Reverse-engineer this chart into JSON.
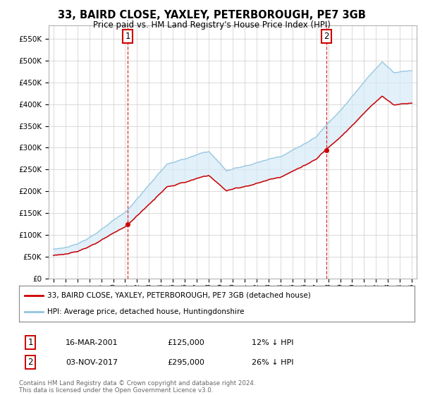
{
  "title": "33, BAIRD CLOSE, YAXLEY, PETERBOROUGH, PE7 3GB",
  "subtitle": "Price paid vs. HM Land Registry's House Price Index (HPI)",
  "ylim": [
    0,
    580000
  ],
  "yticks": [
    0,
    50000,
    100000,
    150000,
    200000,
    250000,
    300000,
    350000,
    400000,
    450000,
    500000,
    550000
  ],
  "sale1_date_num": 2001.21,
  "sale1_price": 125000,
  "sale1_label": "1",
  "sale2_date_num": 2017.84,
  "sale2_price": 295000,
  "sale2_label": "2",
  "hpi_color": "#92c5de",
  "hpi_fill_color": "#d6eaf8",
  "price_color": "#cc0000",
  "grid_color": "#cccccc",
  "bg_color": "#ffffff",
  "legend_label_price": "33, BAIRD CLOSE, YAXLEY, PETERBOROUGH, PE7 3GB (detached house)",
  "legend_label_hpi": "HPI: Average price, detached house, Huntingdonshire",
  "ann1_date": "16-MAR-2001",
  "ann1_price": "£125,000",
  "ann1_hpi": "12% ↓ HPI",
  "ann2_date": "03-NOV-2017",
  "ann2_price": "£295,000",
  "ann2_hpi": "26% ↓ HPI",
  "footer": "Contains HM Land Registry data © Crown copyright and database right 2024.\nThis data is licensed under the Open Government Licence v3.0."
}
